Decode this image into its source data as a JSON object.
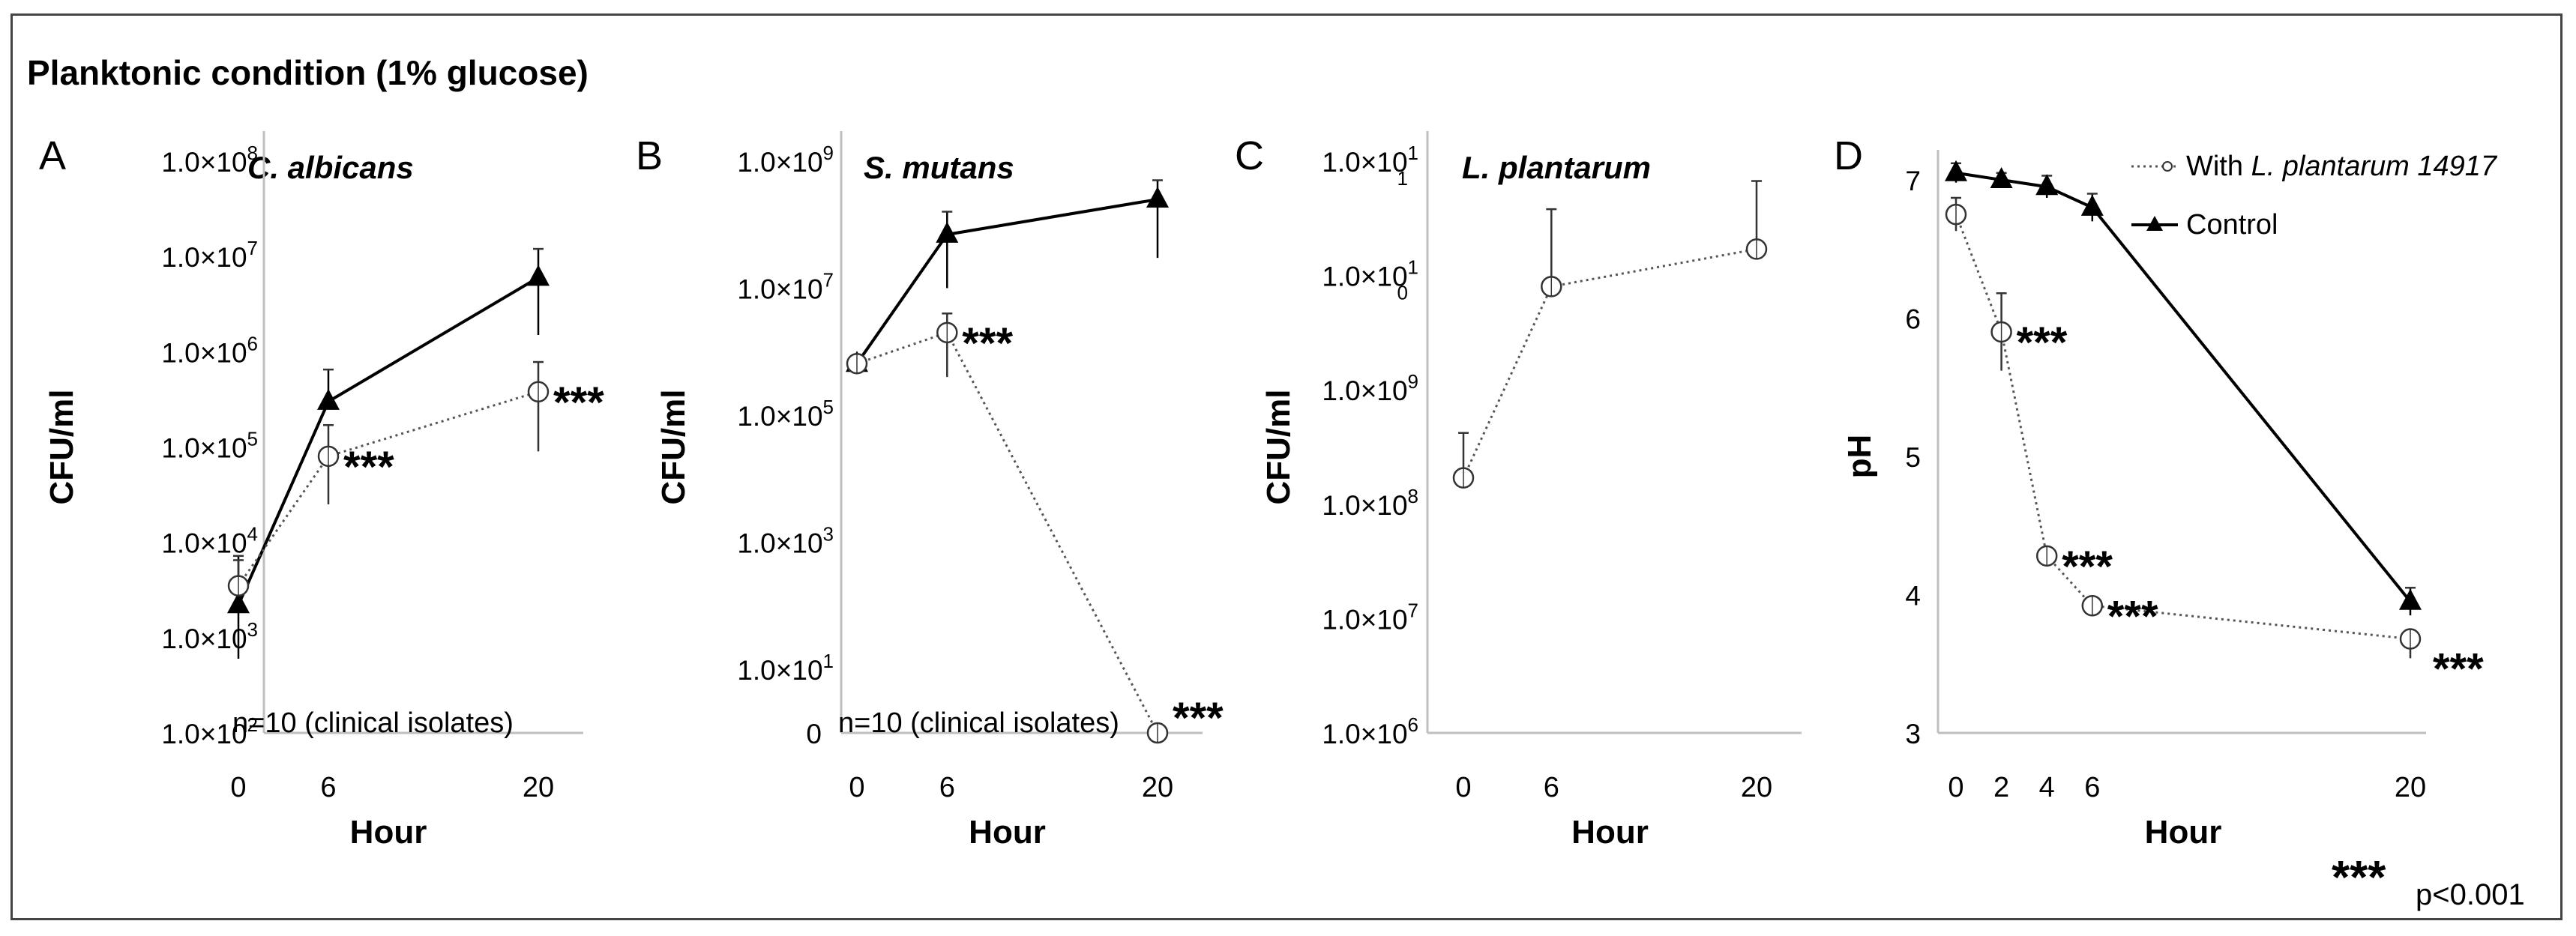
{
  "figure_title": "Planktonic condition (1% glucose)",
  "significance_note": {
    "stars": "***",
    "text": "p<0.001"
  },
  "chart_data": [
    {
      "panel": "A",
      "type": "line",
      "title": "C. albicans",
      "xlabel": "Hour",
      "ylabel": "CFU/ml",
      "yscale": "log",
      "x": [
        0,
        6,
        20
      ],
      "xticks": [
        "0",
        "6",
        "20"
      ],
      "yticks": [
        {
          "value": 100,
          "m": "1.0×10",
          "e": "2",
          "e2": ""
        },
        {
          "value": 1000,
          "m": "1.0×10",
          "e": "3",
          "e2": ""
        },
        {
          "value": 10000,
          "m": "1.0×10",
          "e": "4",
          "e2": ""
        },
        {
          "value": 100000,
          "m": "1.0×10",
          "e": "5",
          "e2": ""
        },
        {
          "value": 1000000,
          "m": "1.0×10",
          "e": "6",
          "e2": ""
        },
        {
          "value": 10000000,
          "m": "1.0×10",
          "e": "7",
          "e2": ""
        },
        {
          "value": 100000000,
          "m": "1.0×10",
          "e": "8",
          "e2": ""
        }
      ],
      "ylim": [
        100,
        100000000
      ],
      "series": [
        {
          "name": "Control",
          "marker": "triangle",
          "style": "solid",
          "values": [
            2200,
            300000,
            6000000
          ],
          "err_up": [
            5000,
            350000,
            6000000
          ],
          "err_down": [
            1600,
            0,
            4500000
          ]
        },
        {
          "name": "With L. plantarum 14917",
          "marker": "circle",
          "style": "dotted",
          "values": [
            3500,
            80000,
            380000
          ],
          "err_up": [
            3000,
            90000,
            400000
          ],
          "err_down": [
            0,
            55000,
            290000
          ]
        }
      ],
      "annotations": [
        {
          "text": "***",
          "x": 6,
          "y": 80000
        },
        {
          "text": "***",
          "x": 20,
          "y": 380000
        }
      ],
      "note": "n=10 (clinical isolates)"
    },
    {
      "panel": "B",
      "type": "line",
      "title": "S. mutans",
      "xlabel": "Hour",
      "ylabel": "CFU/ml",
      "yscale": "log",
      "x": [
        0,
        6,
        20
      ],
      "xticks": [
        "0",
        "6",
        "20"
      ],
      "yticks": [
        {
          "value": 1,
          "m": "0",
          "e": "",
          "e2": ""
        },
        {
          "value": 10,
          "m": "1.0×10",
          "e": "1",
          "e2": ""
        },
        {
          "value": 1000,
          "m": "1.0×10",
          "e": "3",
          "e2": ""
        },
        {
          "value": 100000,
          "m": "1.0×10",
          "e": "5",
          "e2": ""
        },
        {
          "value": 10000000,
          "m": "1.0×10",
          "e": "7",
          "e2": ""
        },
        {
          "value": 1000000000,
          "m": "1.0×10",
          "e": "9",
          "e2": ""
        }
      ],
      "ylim": [
        1,
        1000000000
      ],
      "series": [
        {
          "name": "Control",
          "marker": "triangle",
          "style": "solid",
          "values": [
            650000,
            70000000,
            250000000
          ],
          "err_up": [
            0,
            90000000,
            250000000
          ],
          "err_down": [
            0,
            60000000,
            220000000
          ]
        },
        {
          "name": "With L. plantarum 14917",
          "marker": "circle",
          "style": "dotted",
          "values": [
            650000,
            2000000,
            1
          ],
          "err_up": [
            0,
            2000000,
            0
          ],
          "err_down": [
            0,
            1600000,
            0
          ]
        }
      ],
      "annotations": [
        {
          "text": "***",
          "x": 6,
          "y": 2000000
        },
        {
          "text": "***",
          "x": 20,
          "y": 1
        }
      ],
      "note": "n=10 (clinical isolates)"
    },
    {
      "panel": "C",
      "type": "line",
      "title": "L. plantarum",
      "xlabel": "Hour",
      "ylabel": "CFU/ml",
      "yscale": "log",
      "x": [
        0,
        6,
        20
      ],
      "xticks": [
        "0",
        "6",
        "20"
      ],
      "yticks": [
        {
          "value": 1000000,
          "m": "1.0×10",
          "e": "6",
          "e2": ""
        },
        {
          "value": 10000000,
          "m": "1.0×10",
          "e": "7",
          "e2": ""
        },
        {
          "value": 100000000,
          "m": "1.0×10",
          "e": "8",
          "e2": ""
        },
        {
          "value": 1000000000,
          "m": "1.0×10",
          "e": "9",
          "e2": ""
        },
        {
          "value": 10000000000,
          "m": "1.0×10",
          "e": "1",
          "e2": "0"
        },
        {
          "value": 100000000000,
          "m": "1.0×10",
          "e": "1",
          "e2": "1"
        }
      ],
      "ylim": [
        1000000,
        100000000000
      ],
      "series": [
        {
          "name": "With L. plantarum 14917",
          "marker": "circle",
          "style": "dotted",
          "values": [
            170000000,
            8000000000,
            17000000000
          ],
          "err_up": [
            250000000,
            30000000000,
            50000000000
          ],
          "err_down": [
            0,
            0,
            0
          ]
        }
      ],
      "annotations": []
    },
    {
      "panel": "D",
      "type": "line",
      "title": "",
      "xlabel": "Hour",
      "ylabel": "pH",
      "yscale": "linear",
      "x": [
        0,
        2,
        4,
        6,
        20
      ],
      "xticks": [
        "0",
        "2",
        "4",
        "6",
        "20"
      ],
      "yticks": [
        {
          "value": 3,
          "m": "3",
          "e": "",
          "e2": ""
        },
        {
          "value": 4,
          "m": "4",
          "e": "",
          "e2": ""
        },
        {
          "value": 5,
          "m": "5",
          "e": "",
          "e2": ""
        },
        {
          "value": 6,
          "m": "6",
          "e": "",
          "e2": ""
        },
        {
          "value": 7,
          "m": "7",
          "e": "",
          "e2": ""
        }
      ],
      "ylim": [
        3,
        7
      ],
      "series": [
        {
          "name": "Control",
          "marker": "triangle",
          "style": "solid",
          "values": [
            7.05,
            7.0,
            6.95,
            6.8,
            3.95
          ],
          "err_up": [
            0.07,
            0.05,
            0.08,
            0.1,
            0.1
          ],
          "err_down": [
            0.07,
            0.05,
            0.08,
            0.1,
            0.1
          ]
        },
        {
          "name": "With L. plantarum 14917",
          "marker": "circle",
          "style": "dotted",
          "values": [
            6.75,
            5.9,
            4.28,
            3.92,
            3.68
          ],
          "err_up": [
            0.12,
            0.28,
            0.04,
            0.04,
            0.06
          ],
          "err_down": [
            0.12,
            0.28,
            0.04,
            0.04,
            0.14
          ]
        }
      ],
      "annotations": [
        {
          "text": "***",
          "x": 2,
          "y": 5.9
        },
        {
          "text": "***",
          "x": 4,
          "y": 4.28
        },
        {
          "text": "***",
          "x": 6,
          "y": 3.92
        },
        {
          "text": "***",
          "x": 20,
          "y": 3.68
        }
      ],
      "legend": {
        "position": "top-right",
        "entries": [
          {
            "prefix": "With ",
            "italic": "L. plantarum 14917",
            "series": "With L. plantarum 14917"
          },
          {
            "prefix": "Control",
            "italic": "",
            "series": "Control"
          }
        ]
      }
    }
  ]
}
